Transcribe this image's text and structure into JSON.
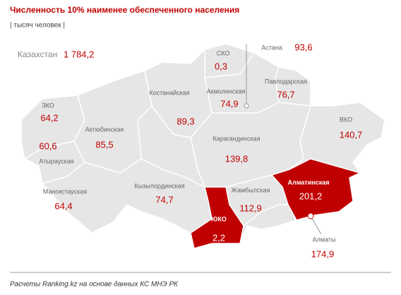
{
  "header": {
    "title": "Численность 10% наименее обеспеченного населения",
    "subtitle": "| тысяч человек |"
  },
  "total": {
    "label": "Казахстан",
    "value": "1 784,2"
  },
  "regions": [
    {
      "label": "СКО",
      "value": "0,3"
    },
    {
      "label": "Астана",
      "value": "93,6"
    },
    {
      "label": "Акмолинская",
      "value": "74,9"
    },
    {
      "label": "Павлодарская",
      "value": "76,7"
    },
    {
      "label": "Костанайская",
      "value": "89,3"
    },
    {
      "label": "ЗКО",
      "value": "64,2"
    },
    {
      "label": "Актюбинская",
      "value": "85,5"
    },
    {
      "label": "Атырауская",
      "value": "60,6"
    },
    {
      "label": "Карагандинская",
      "value": "139,8"
    },
    {
      "label": "ВКО",
      "value": "140,7"
    },
    {
      "label": "Мангистауская",
      "value": "64,4"
    },
    {
      "label": "Кызылординская",
      "value": "74,7"
    },
    {
      "label": "Жамбылская",
      "value": "112,9"
    },
    {
      "label": "Алматинская",
      "value": "201,2",
      "fill": "#c00000"
    },
    {
      "label": "ЮКО",
      "value": "2,2",
      "fill": "#c00000"
    },
    {
      "label": "Алматы",
      "value": "174,9"
    }
  ],
  "footer": "Расчеты Ranking.kz на основе данных КС МНЭ РК"
}
